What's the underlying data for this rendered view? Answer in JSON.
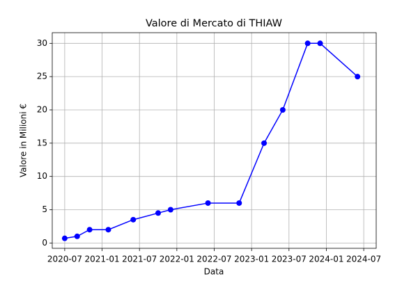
{
  "chart_data": {
    "type": "line",
    "title": "Valore di Mercato di THIAW",
    "x_label": "Data",
    "y_label": "Valore in Milioni €",
    "x": [
      "2020-07",
      "2020-09",
      "2020-11",
      "2021-02",
      "2021-06",
      "2021-10",
      "2021-12",
      "2022-06",
      "2022-11",
      "2023-03",
      "2023-06",
      "2023-10",
      "2023-12",
      "2024-06"
    ],
    "series": [
      {
        "name": "Valore",
        "color": "#0000ff",
        "values": [
          0.7,
          1,
          2,
          2,
          3.5,
          4.5,
          5,
          6,
          6,
          15,
          20,
          30,
          30,
          25
        ]
      }
    ],
    "xlim": [
      "2020-05",
      "2024-09"
    ],
    "xticks": [
      "2020-07",
      "2021-01",
      "2021-07",
      "2022-01",
      "2022-07",
      "2023-01",
      "2023-07",
      "2024-01",
      "2024-07"
    ],
    "ylim": [
      -0.8,
      31.6
    ],
    "yticks": [
      0,
      5,
      10,
      15,
      20,
      25,
      30
    ],
    "grid": true
  }
}
